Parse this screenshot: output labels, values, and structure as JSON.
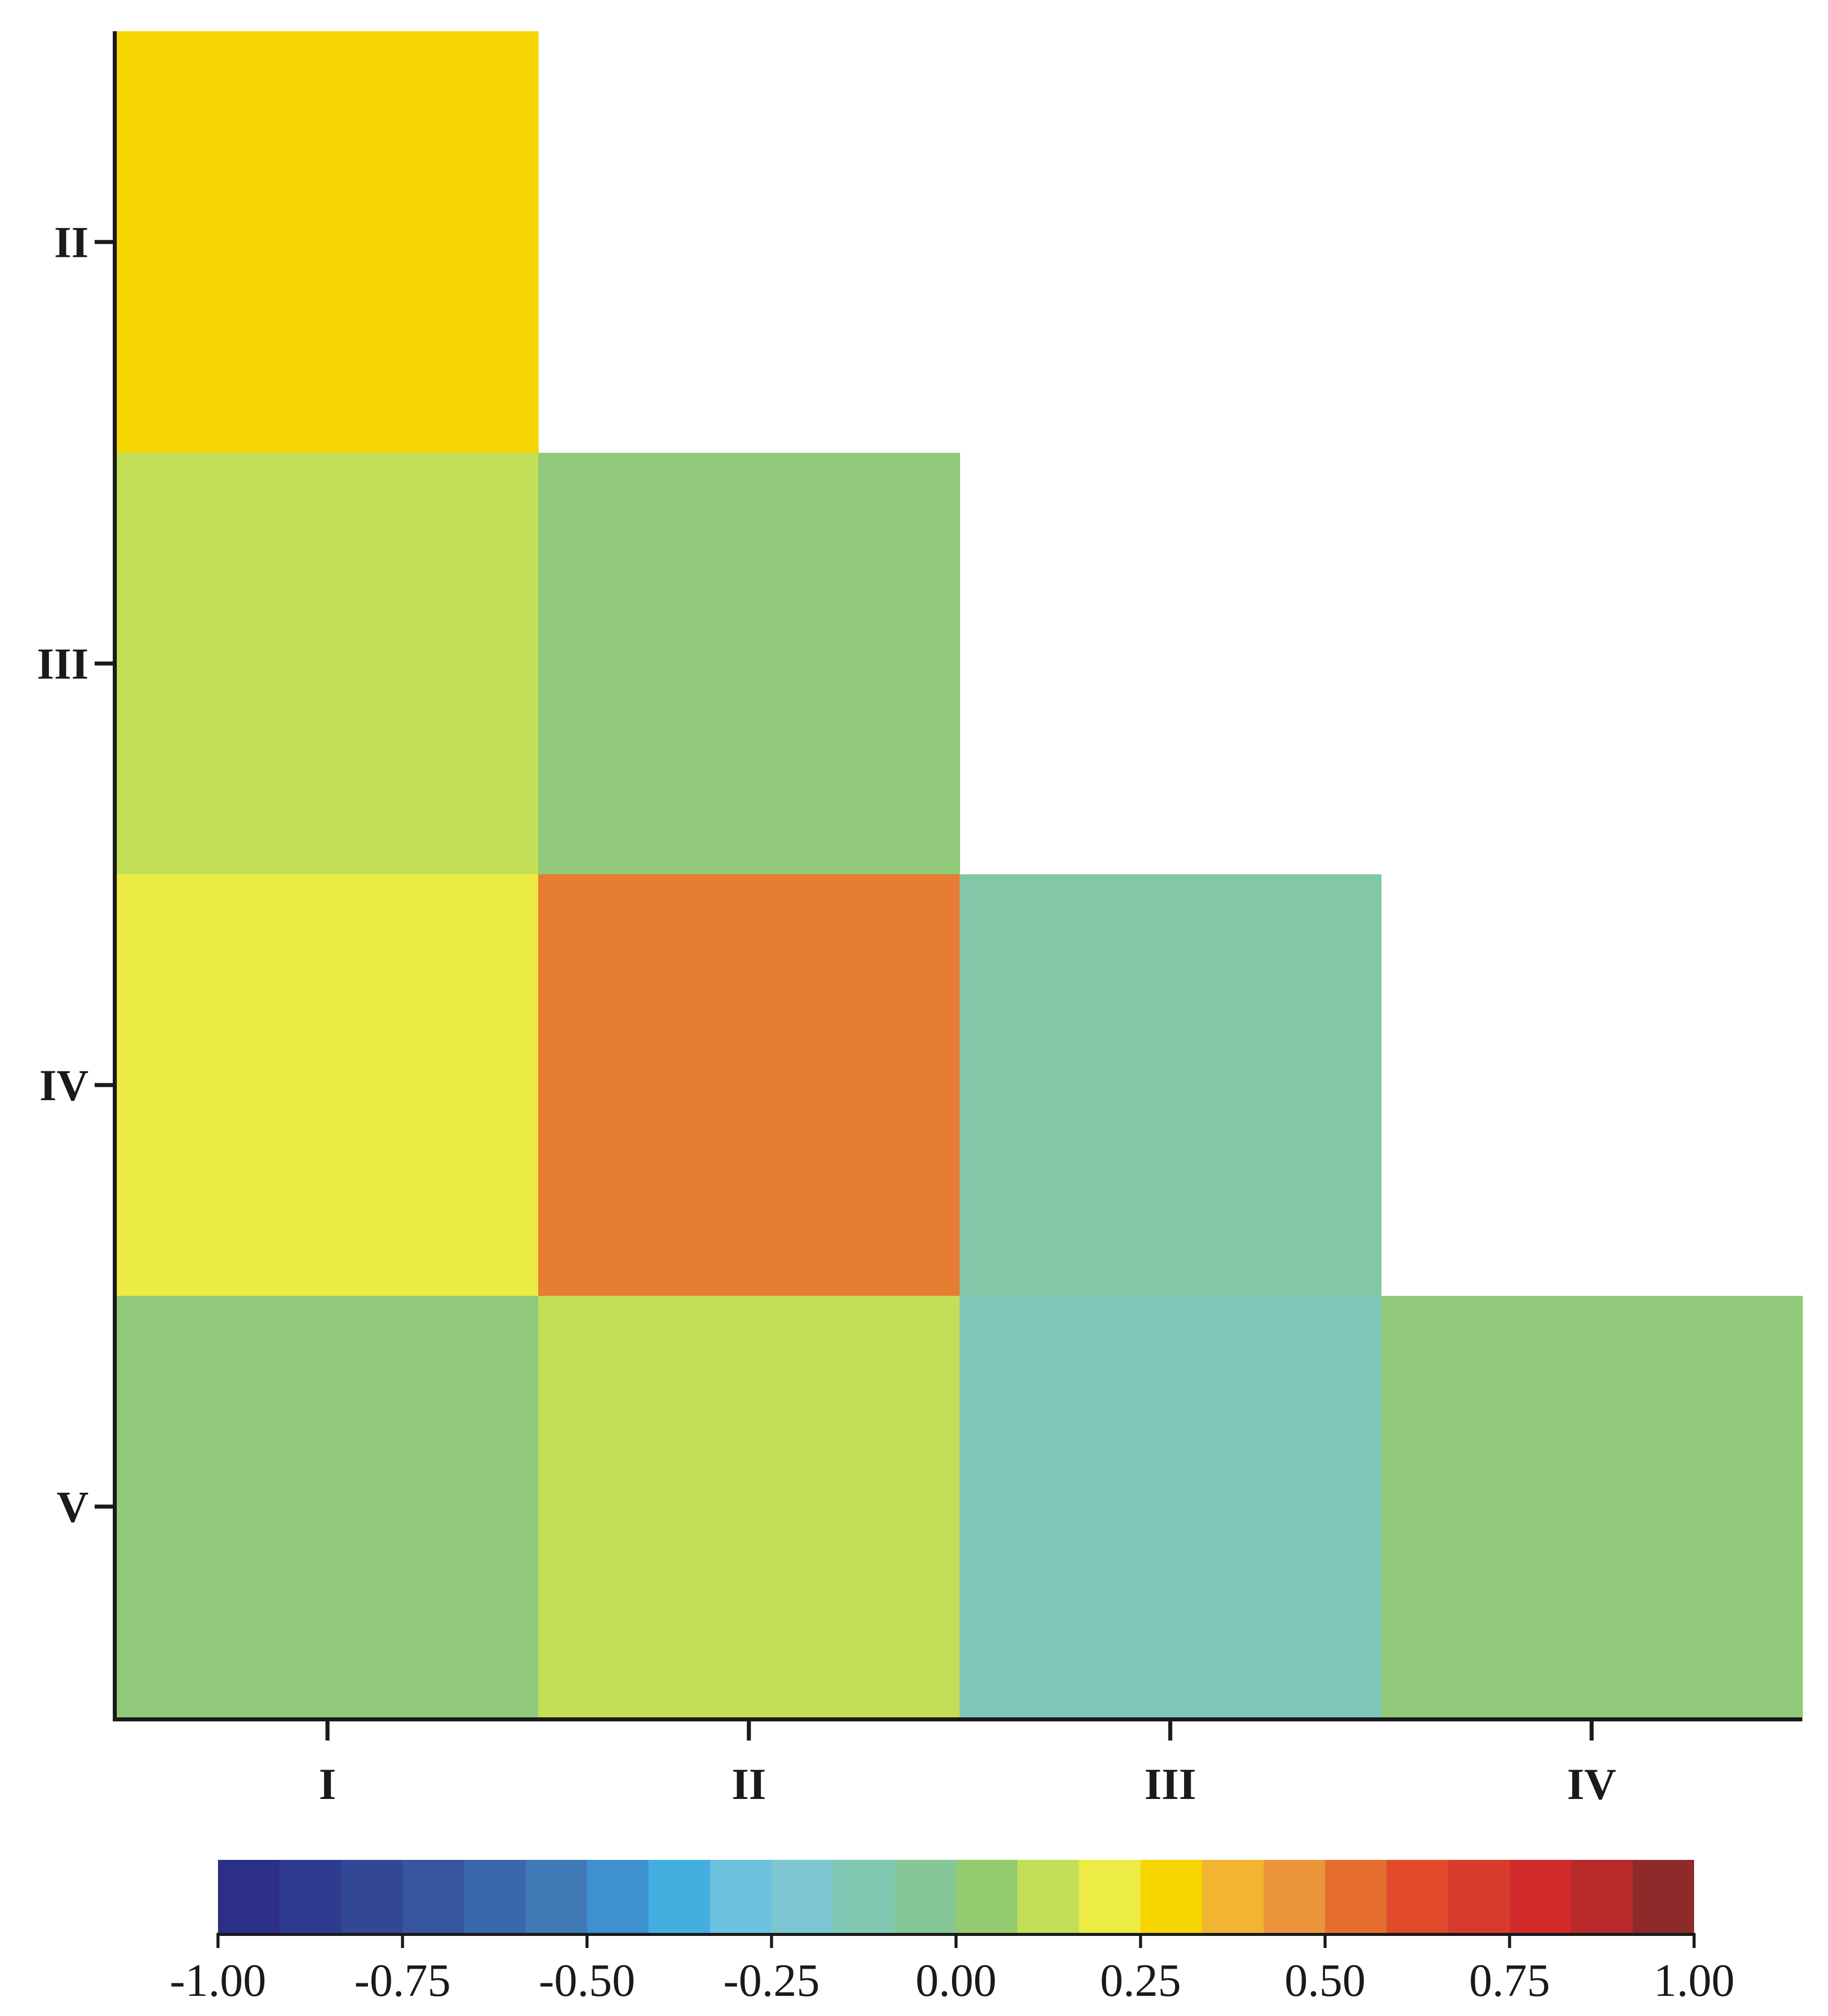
{
  "chart_data": {
    "type": "heatmap",
    "title": "",
    "xlabel": "",
    "ylabel": "",
    "x_categories": [
      "I",
      "II",
      "III",
      "IV"
    ],
    "y_categories": [
      "II",
      "III",
      "IV",
      "V"
    ],
    "layout": "lower-triangular",
    "cells": [
      {
        "x": "I",
        "y": "II",
        "value": 0.3
      },
      {
        "x": "I",
        "y": "III",
        "value": 0.13
      },
      {
        "x": "II",
        "y": "III",
        "value": 0.02
      },
      {
        "x": "I",
        "y": "IV",
        "value": 0.22
      },
      {
        "x": "II",
        "y": "IV",
        "value": 0.53
      },
      {
        "x": "III",
        "y": "IV",
        "value": -0.1
      },
      {
        "x": "I",
        "y": "V",
        "value": 0.02
      },
      {
        "x": "II",
        "y": "V",
        "value": 0.13
      },
      {
        "x": "III",
        "y": "V",
        "value": -0.15
      },
      {
        "x": "IV",
        "y": "V",
        "value": 0.02
      }
    ],
    "colorbar": {
      "range": [
        -1.0,
        1.0
      ],
      "tick_labels": [
        "-1.00",
        "-0.75",
        "-0.50",
        "-0.25",
        "0.00",
        "0.25",
        "0.50",
        "0.75",
        "1.00"
      ],
      "colors": [
        "#2b2f86",
        "#2e3a8e",
        "#324796",
        "#37569f",
        "#3b67ab",
        "#3f79b6",
        "#3e90ce",
        "#44aee0",
        "#6cc1df",
        "#7bc6d0",
        "#80c8b2",
        "#85c796",
        "#95cb6f",
        "#c4df57",
        "#ecec45",
        "#f6d600",
        "#f2b531",
        "#eb943a",
        "#e56e2f",
        "#e14b2c",
        "#d93a2e",
        "#d32a2b",
        "#ba2a2a",
        "#8e2a2a"
      ],
      "placement": "bottom"
    }
  }
}
